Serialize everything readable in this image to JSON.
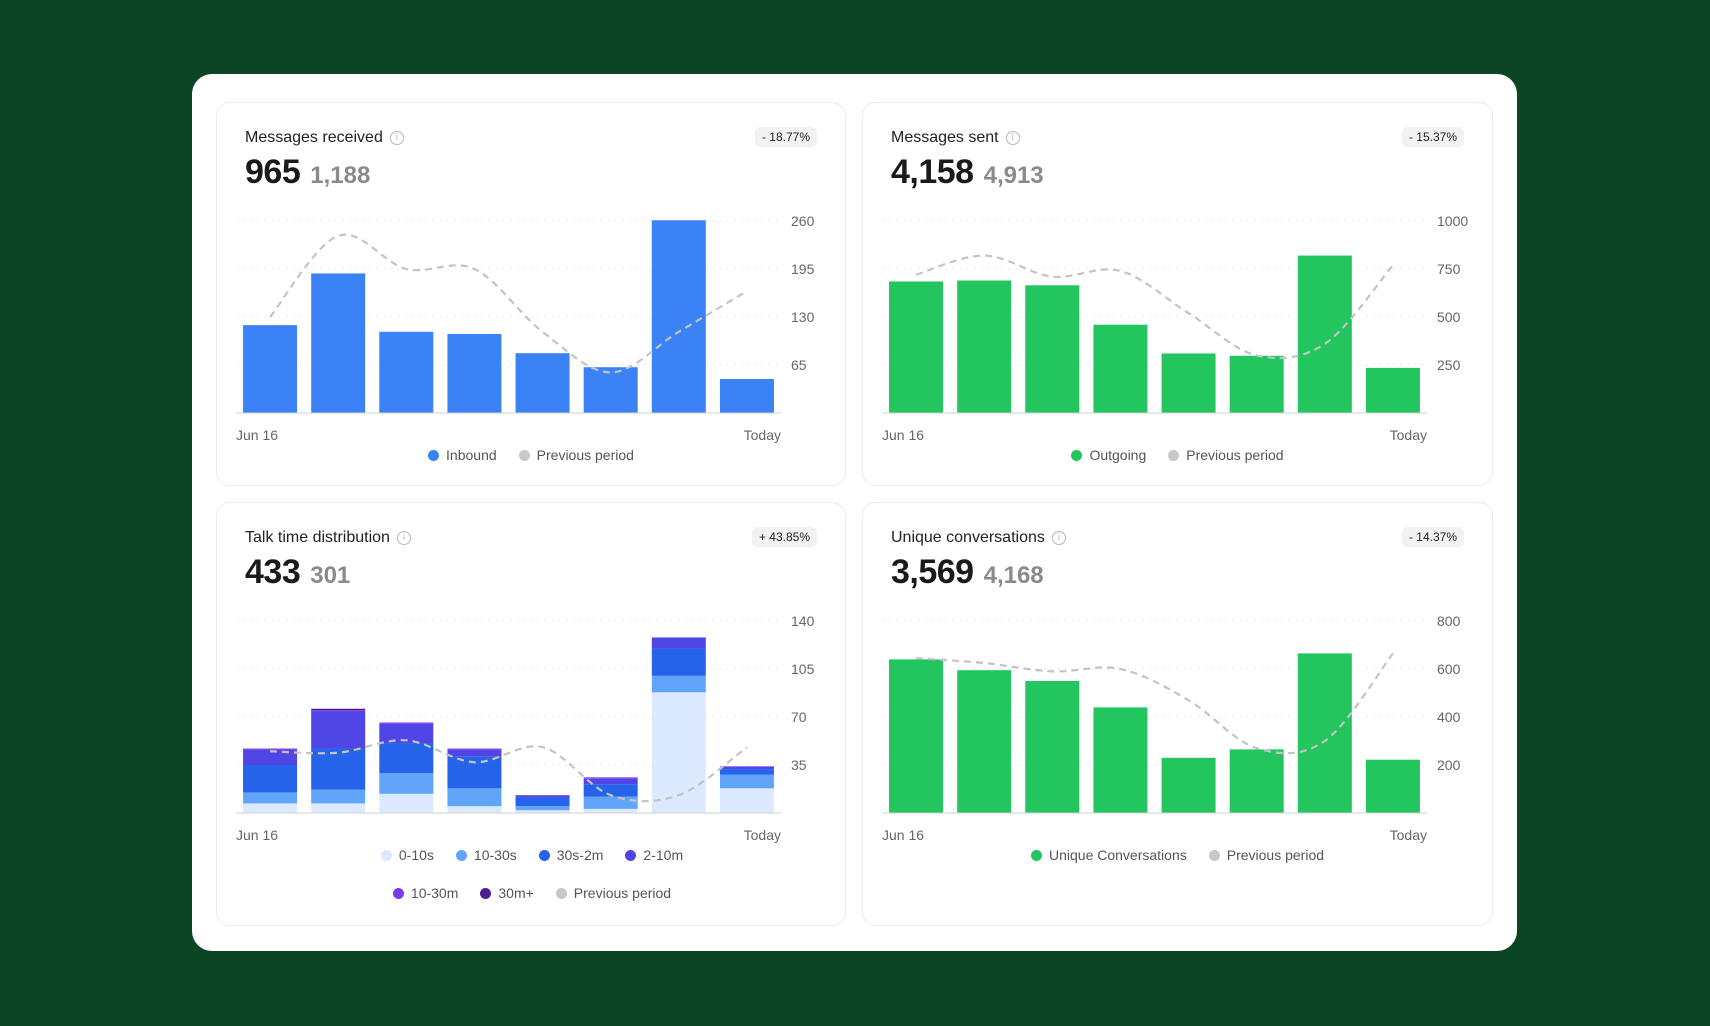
{
  "cards": [
    {
      "title": "Messages received",
      "badge": "- 18.77%",
      "value": "965",
      "prev_value": "1,188",
      "color": "#3b82f6",
      "legend": [
        {
          "label": "Inbound",
          "color": "#3b82f6"
        },
        {
          "label": "Previous period",
          "color": "#c8c8c8"
        }
      ]
    },
    {
      "title": "Messages sent",
      "badge": "- 15.37%",
      "value": "4,158",
      "prev_value": "4,913",
      "color": "#22c55e",
      "legend": [
        {
          "label": "Outgoing",
          "color": "#22c55e"
        },
        {
          "label": "Previous period",
          "color": "#c8c8c8"
        }
      ]
    },
    {
      "title": "Talk time distribution",
      "badge": "+ 43.85%",
      "value": "433",
      "prev_value": "301",
      "legend": [
        {
          "label": "0-10s",
          "color": "#dbeafe"
        },
        {
          "label": "10-30s",
          "color": "#60a5fa"
        },
        {
          "label": "30s-2m",
          "color": "#2563eb"
        },
        {
          "label": "2-10m",
          "color": "#4f46e5"
        },
        {
          "label": "10-30m",
          "color": "#7c3aed"
        },
        {
          "label": "30m+",
          "color": "#4c1d95"
        },
        {
          "label": "Previous period",
          "color": "#c8c8c8"
        }
      ]
    },
    {
      "title": "Unique conversations",
      "badge": "- 14.37%",
      "value": "3,569",
      "prev_value": "4,168",
      "color": "#22c55e",
      "legend": [
        {
          "label": "Unique Conversations",
          "color": "#22c55e"
        },
        {
          "label": "Previous period",
          "color": "#c8c8c8"
        }
      ]
    }
  ],
  "chart_data": [
    {
      "type": "bar",
      "x_labels": [
        "Jun 16",
        "Today"
      ],
      "yticks": [
        65,
        130,
        195,
        260
      ],
      "ylim": [
        0,
        260
      ],
      "series": [
        {
          "name": "Inbound",
          "values": [
            119,
            189,
            110,
            107,
            81,
            62,
            261,
            46
          ]
        },
        {
          "name": "Previous period",
          "type": "line",
          "values": [
            130,
            240,
            195,
            195,
            110,
            55,
            110,
            165
          ]
        }
      ]
    },
    {
      "type": "bar",
      "x_labels": [
        "Jun 16",
        "Today"
      ],
      "yticks": [
        250,
        500,
        750,
        1000
      ],
      "ylim": [
        0,
        1000
      ],
      "series": [
        {
          "name": "Outgoing",
          "values": [
            685,
            690,
            665,
            460,
            310,
            298,
            820,
            235
          ]
        },
        {
          "name": "Previous period",
          "type": "line",
          "values": [
            720,
            820,
            710,
            740,
            520,
            300,
            360,
            770
          ]
        }
      ]
    },
    {
      "type": "bar",
      "stacked": true,
      "x_labels": [
        "Jun 16",
        "Today"
      ],
      "yticks": [
        35,
        70,
        105,
        140
      ],
      "ylim": [
        0,
        140
      ],
      "categories_count": 8,
      "series": [
        {
          "name": "0-10s",
          "values": [
            7,
            7,
            14,
            5,
            2,
            3,
            88,
            18
          ]
        },
        {
          "name": "10-30s",
          "values": [
            8,
            10,
            15,
            13,
            3,
            9,
            12,
            10
          ]
        },
        {
          "name": "30s-2m",
          "values": [
            20,
            30,
            22,
            23,
            6,
            9,
            20,
            4
          ]
        },
        {
          "name": "2-10m",
          "values": [
            11,
            27,
            14,
            5,
            2,
            4,
            8,
            2
          ]
        },
        {
          "name": "10-30m",
          "values": [
            1,
            1,
            1,
            1,
            0,
            1,
            0,
            0
          ]
        },
        {
          "name": "30m+",
          "values": [
            0,
            1,
            0,
            0,
            0,
            0,
            0,
            0
          ]
        },
        {
          "name": "Previous period",
          "type": "line",
          "values": [
            45,
            44,
            53,
            37,
            48,
            13,
            13,
            48
          ]
        }
      ]
    },
    {
      "type": "bar",
      "x_labels": [
        "Jun 16",
        "Today"
      ],
      "yticks": [
        200,
        400,
        600,
        800
      ],
      "ylim": [
        0,
        800
      ],
      "series": [
        {
          "name": "Unique Conversations",
          "values": [
            640,
            595,
            550,
            440,
            230,
            265,
            665,
            222
          ]
        },
        {
          "name": "Previous period",
          "type": "line",
          "values": [
            645,
            625,
            590,
            600,
            470,
            270,
            300,
            665
          ]
        }
      ]
    }
  ]
}
